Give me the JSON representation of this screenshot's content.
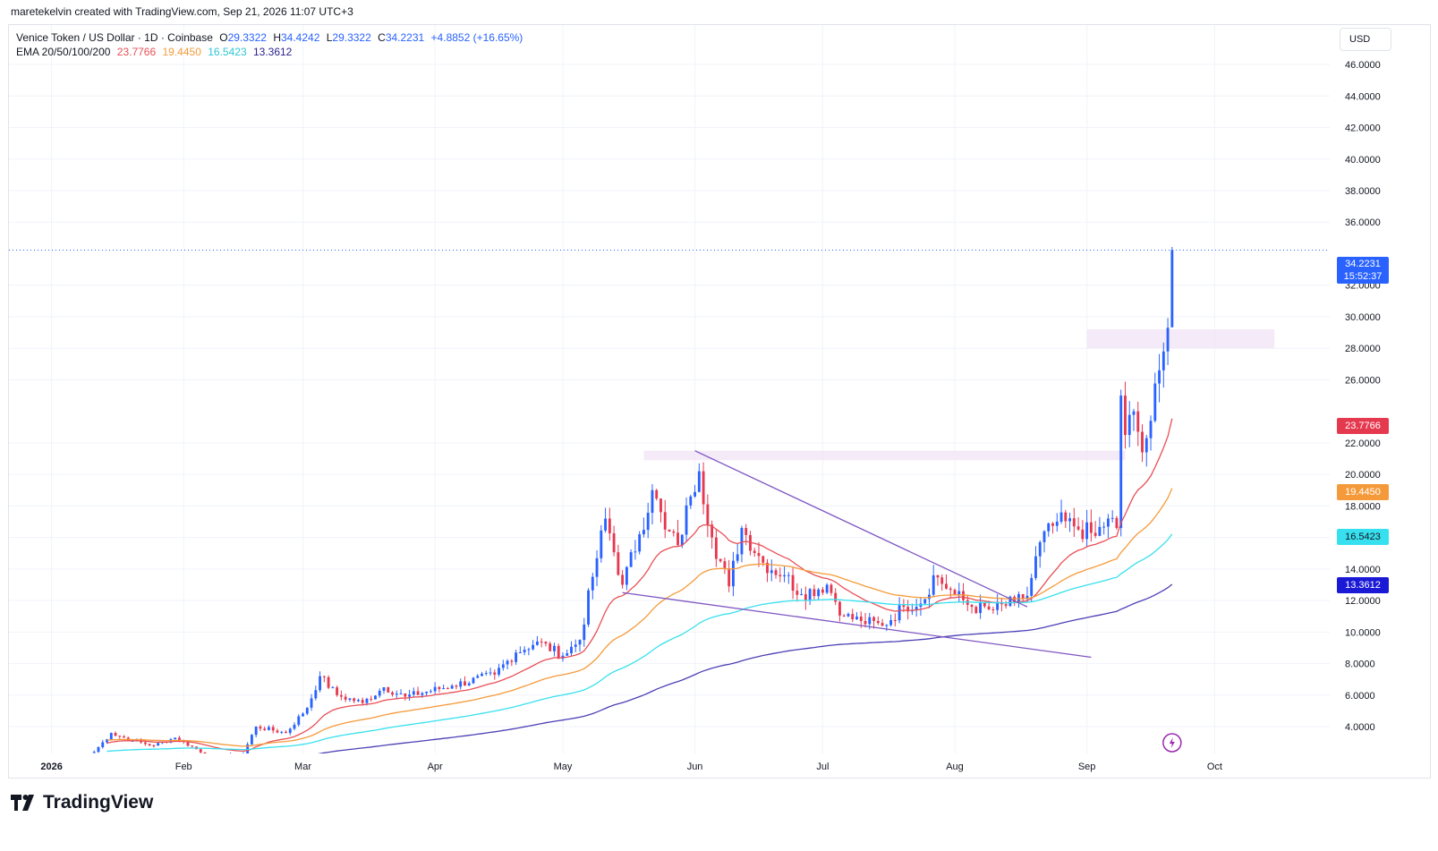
{
  "header": {
    "attribution": "maretekelvin created with TradingView.com, Sep 21, 2026 11:07 UTC+3",
    "currency_button": "USD",
    "brand": "TradingView"
  },
  "legend": {
    "symbol": "Venice Token / US Dollar · 1D · Coinbase",
    "o_label": "O",
    "o_value": "29.3322",
    "h_label": "H",
    "h_value": "34.4242",
    "l_label": "L",
    "l_value": "29.3322",
    "c_label": "C",
    "c_value": "34.2231",
    "change": "+4.8852 (+16.65%)",
    "ema_label": "EMA 20/50/100/200",
    "ema20": "23.7766",
    "ema50": "19.4450",
    "ema100": "16.5423",
    "ema200": "13.3612"
  },
  "price_tags": {
    "last_price": "34.2231",
    "countdown": "15:52:37"
  },
  "colors": {
    "up": "#2962ff",
    "down": "#e53950",
    "ema20": "#e84f55",
    "ema50": "#f59a3a",
    "ema100": "#37e0ee",
    "ema200": "#4b3fb5",
    "trendline": "#7e57c2",
    "zone": "#f3e5f5"
  },
  "chart_data": {
    "type": "candlestick",
    "title": "Venice Token / US Dollar · 1D · Coinbase",
    "y_ticks": [
      "46.0000",
      "44.0000",
      "42.0000",
      "40.0000",
      "38.0000",
      "36.0000",
      "32.0000",
      "30.0000",
      "28.0000",
      "26.0000",
      "22.0000",
      "20.0000",
      "18.0000",
      "16.0000",
      "14.0000",
      "12.0000",
      "10.0000",
      "8.0000",
      "6.0000",
      "4.0000"
    ],
    "x_ticks": [
      {
        "label": "2026",
        "date": "2026-01-01"
      },
      {
        "label": "Feb",
        "date": "2026-02-01"
      },
      {
        "label": "Mar",
        "date": "2026-03-01"
      },
      {
        "label": "Apr",
        "date": "2026-04-01"
      },
      {
        "label": "May",
        "date": "2026-05-01"
      },
      {
        "label": "Jun",
        "date": "2026-06-01"
      },
      {
        "label": "Jul",
        "date": "2026-07-01"
      },
      {
        "label": "Aug",
        "date": "2026-08-01"
      },
      {
        "label": "Sep",
        "date": "2026-09-01"
      },
      {
        "label": "Oct",
        "date": "2026-10-01"
      }
    ],
    "ylim": [
      2.3,
      48.5
    ],
    "xlim": [
      "2025-12-22",
      "2026-10-28"
    ],
    "close_anchors": [
      [
        "2026-01-11",
        2.4
      ],
      [
        "2026-01-15",
        3.6
      ],
      [
        "2026-01-20",
        3.1
      ],
      [
        "2026-01-25",
        2.8
      ],
      [
        "2026-01-30",
        3.3
      ],
      [
        "2026-02-08",
        2.0
      ],
      [
        "2026-02-15",
        2.3
      ],
      [
        "2026-02-18",
        4.0
      ],
      [
        "2026-02-25",
        3.6
      ],
      [
        "2026-03-02",
        5.2
      ],
      [
        "2026-03-05",
        7.2
      ],
      [
        "2026-03-09",
        6.0
      ],
      [
        "2026-03-15",
        5.5
      ],
      [
        "2026-03-20",
        6.5
      ],
      [
        "2026-03-25",
        5.9
      ],
      [
        "2026-04-05",
        6.6
      ],
      [
        "2026-04-15",
        7.3
      ],
      [
        "2026-04-20",
        8.7
      ],
      [
        "2026-04-25",
        9.4
      ],
      [
        "2026-05-01",
        8.5
      ],
      [
        "2026-05-05",
        9.5
      ],
      [
        "2026-05-08",
        13.5
      ],
      [
        "2026-05-11",
        17.2
      ],
      [
        "2026-05-15",
        13.0
      ],
      [
        "2026-05-19",
        16.2
      ],
      [
        "2026-05-22",
        19.0
      ],
      [
        "2026-05-25",
        16.5
      ],
      [
        "2026-05-28",
        15.5
      ],
      [
        "2026-05-31",
        18.6
      ],
      [
        "2026-06-02",
        20.2
      ],
      [
        "2026-06-05",
        16.0
      ],
      [
        "2026-06-09",
        12.9
      ],
      [
        "2026-06-12",
        16.6
      ],
      [
        "2026-06-17",
        14.4
      ],
      [
        "2026-06-22",
        13.6
      ],
      [
        "2026-06-26",
        12.4
      ],
      [
        "2026-07-02",
        13.0
      ],
      [
        "2026-07-06",
        11.0
      ],
      [
        "2026-07-10",
        10.7
      ],
      [
        "2026-07-15",
        10.4
      ],
      [
        "2026-07-20",
        11.6
      ],
      [
        "2026-07-25",
        12.1
      ],
      [
        "2026-07-27",
        13.6
      ],
      [
        "2026-08-01",
        12.4
      ],
      [
        "2026-08-05",
        11.6
      ],
      [
        "2026-08-10",
        11.4
      ],
      [
        "2026-08-15",
        11.9
      ],
      [
        "2026-08-18",
        12.3
      ],
      [
        "2026-08-21",
        15.7
      ],
      [
        "2026-08-25",
        17.0
      ],
      [
        "2026-08-29",
        16.7
      ],
      [
        "2026-09-03",
        16.1
      ],
      [
        "2026-09-06",
        17.2
      ],
      [
        "2026-09-08",
        16.6
      ],
      [
        "2026-09-09",
        25.0
      ],
      [
        "2026-09-10",
        22.5
      ],
      [
        "2026-09-12",
        24.0
      ],
      [
        "2026-09-14",
        21.4
      ],
      [
        "2026-09-16",
        23.4
      ],
      [
        "2026-09-18",
        26.6
      ],
      [
        "2026-09-19",
        27.8
      ],
      [
        "2026-09-20",
        29.3
      ],
      [
        "2026-09-21",
        34.2
      ]
    ],
    "last_candle": {
      "date": "2026-09-21",
      "open": 29.3322,
      "high": 34.4242,
      "low": 29.3322,
      "close": 34.2231
    },
    "series": [
      {
        "name": "EMA 20",
        "last": 23.7766
      },
      {
        "name": "EMA 50",
        "last": 19.445
      },
      {
        "name": "EMA 100",
        "last": 16.5423
      },
      {
        "name": "EMA 200",
        "last": 13.3612
      }
    ],
    "trendlines": [
      {
        "from": [
          "2026-06-01",
          21.5
        ],
        "to": [
          "2026-08-18",
          11.6
        ]
      },
      {
        "from": [
          "2026-05-15",
          12.5
        ],
        "to": [
          "2026-09-02",
          8.4
        ]
      }
    ],
    "zones": [
      {
        "from": "2026-05-20",
        "to": "2026-09-10",
        "low": 20.9,
        "high": 21.5
      },
      {
        "from": "2026-09-01",
        "to": "2026-10-15",
        "low": 28.0,
        "high": 29.2
      }
    ],
    "grid": true
  }
}
